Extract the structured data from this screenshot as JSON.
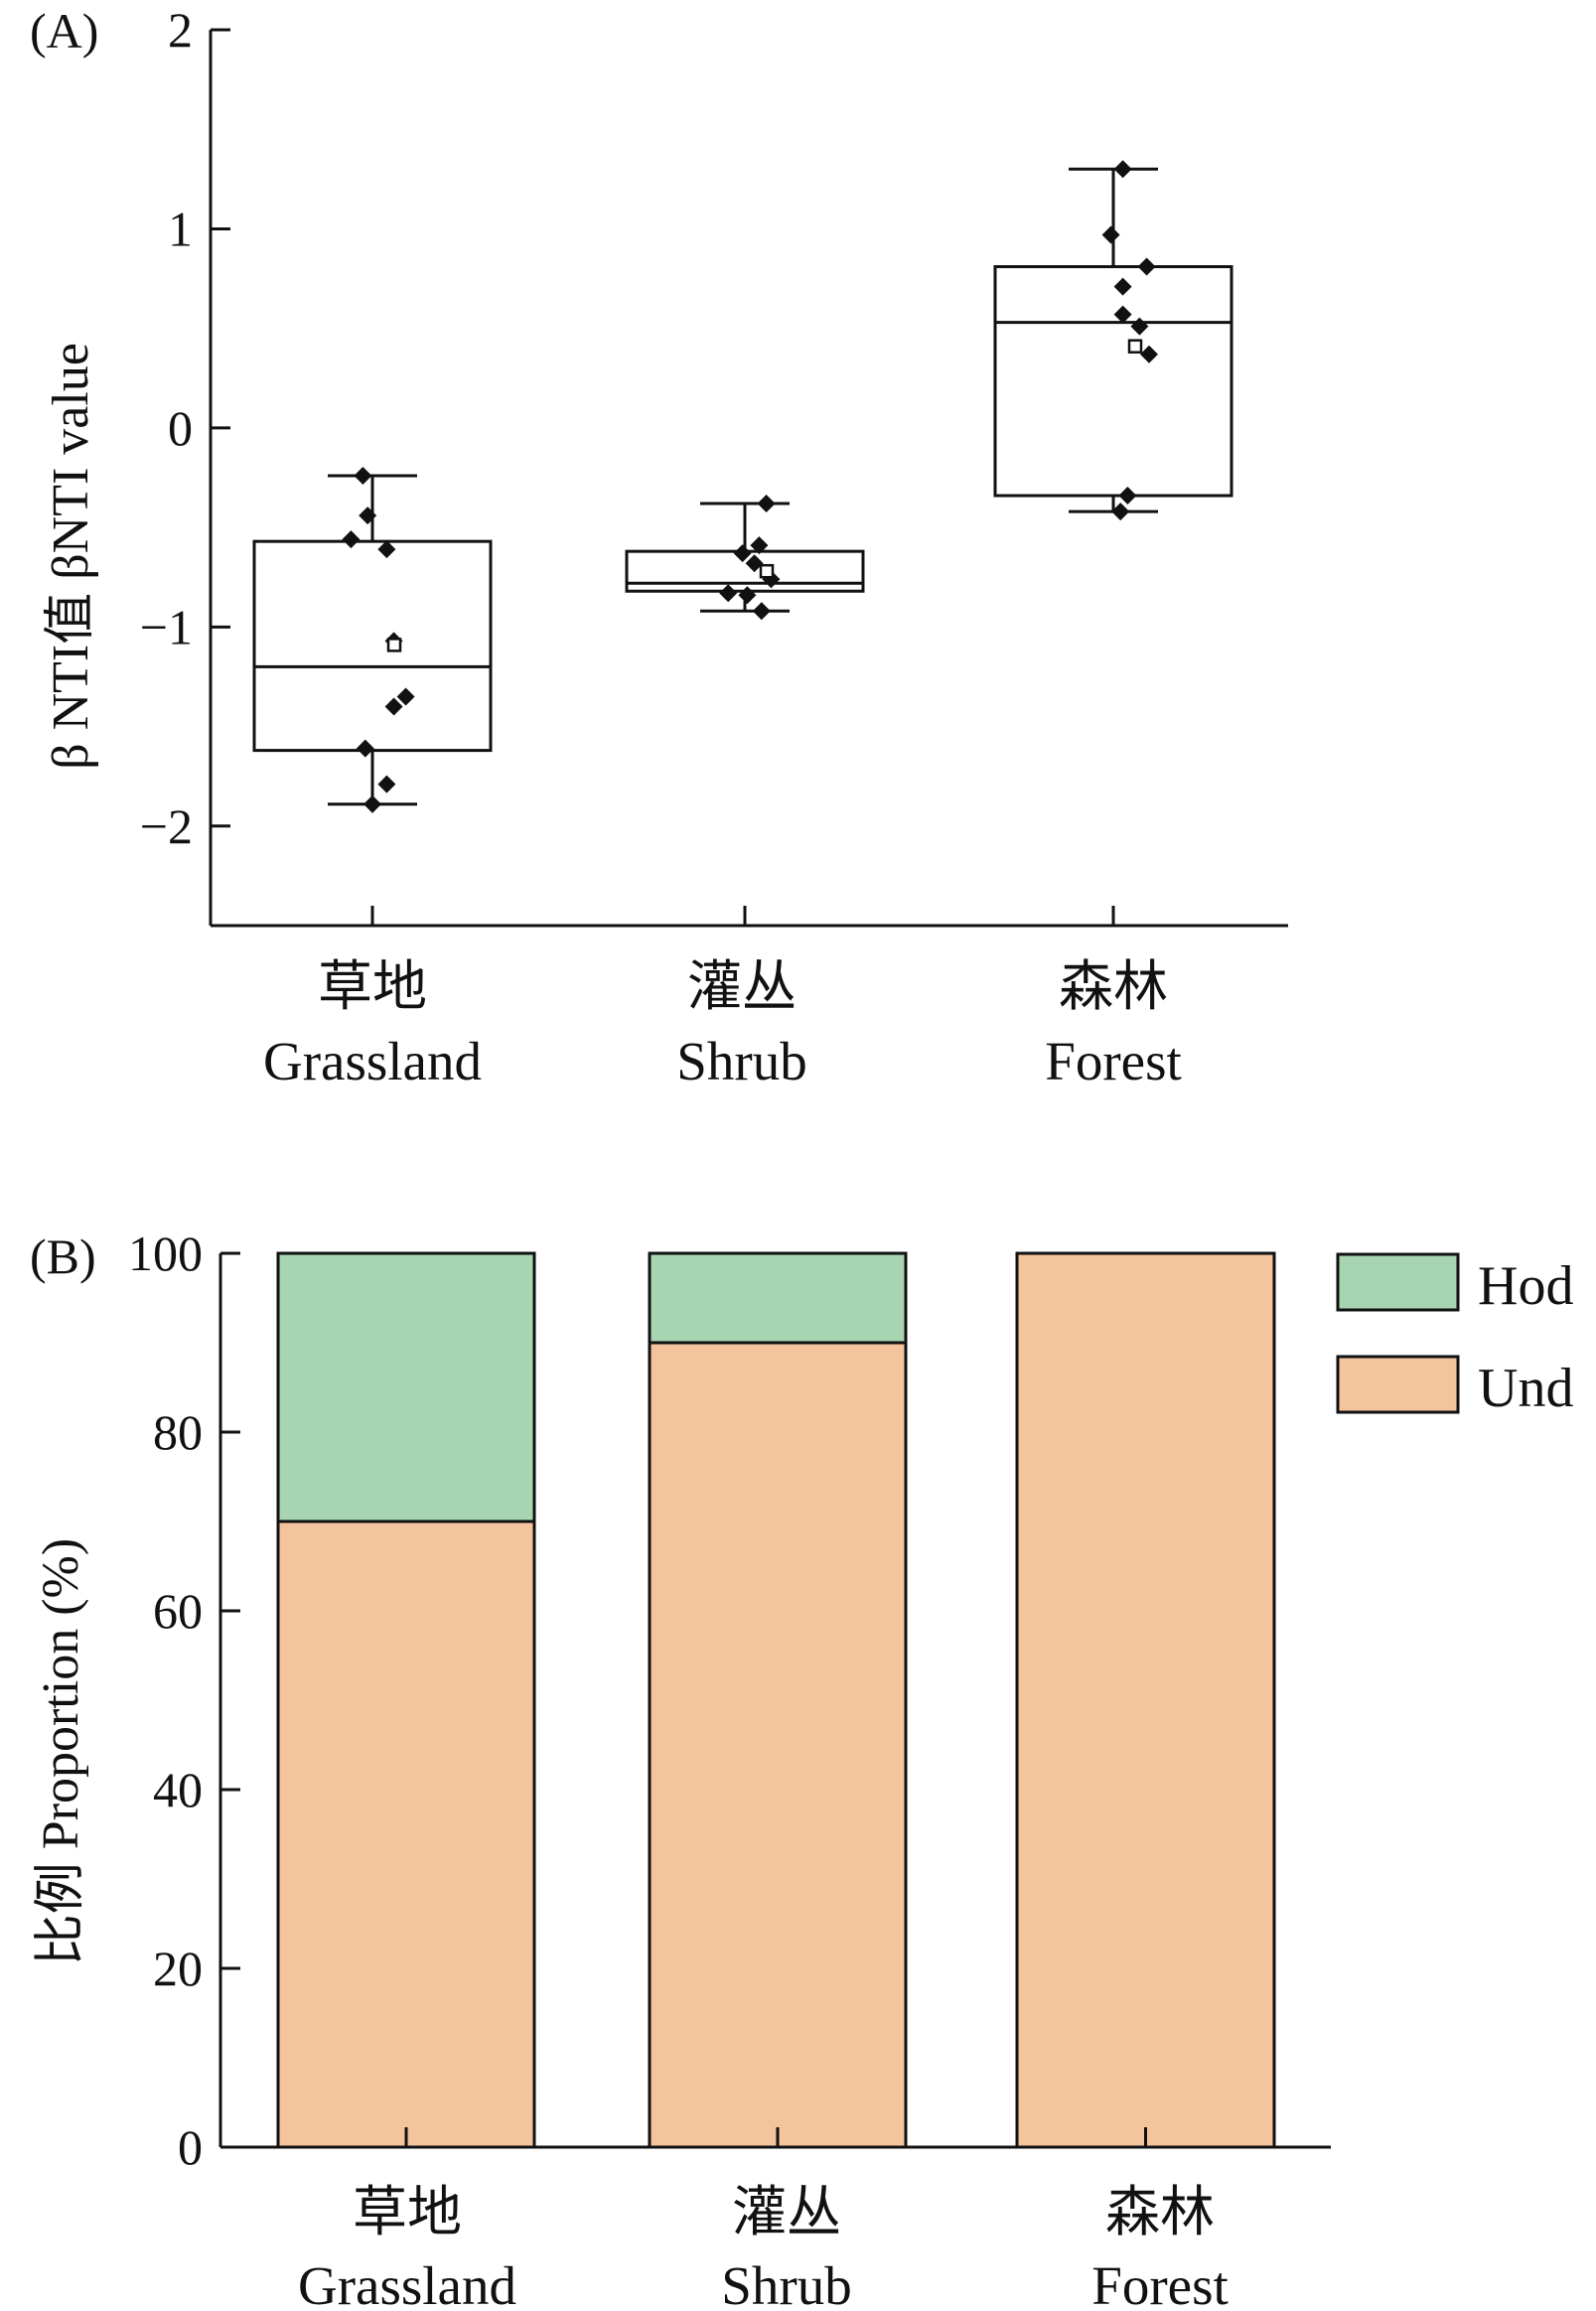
{
  "chart_data": [
    {
      "panel_label": "(A)",
      "type": "box",
      "ylabel": "β NTI值 βNTI value",
      "ylim": [
        -2.5,
        2
      ],
      "yticks": [
        {
          "v": 2,
          "label": "2"
        },
        {
          "v": 1,
          "label": "1"
        },
        {
          "v": 0,
          "label": "0"
        },
        {
          "v": -1,
          "label": "−1"
        },
        {
          "v": -2,
          "label": "−2"
        }
      ],
      "categories": [
        {
          "zh": "草地",
          "en": "Grassland"
        },
        {
          "zh": "灌丛",
          "en": "Shrub"
        },
        {
          "zh": "森林",
          "en": "Forest"
        }
      ],
      "boxes": [
        {
          "whisker_low": -1.89,
          "q1": -1.62,
          "median": -1.2,
          "q3": -0.57,
          "whisker_high": -0.24,
          "mean": -1.09,
          "points": [
            [
              -0.04,
              -0.24
            ],
            [
              -0.02,
              -0.44
            ],
            [
              -0.09,
              -0.56
            ],
            [
              0.06,
              -0.61
            ],
            [
              0.09,
              -1.07
            ],
            [
              0.14,
              -1.35
            ],
            [
              0.09,
              -1.4
            ],
            [
              -0.03,
              -1.61
            ],
            [
              0.06,
              -1.79
            ],
            [
              0.0,
              -1.89
            ]
          ]
        },
        {
          "whisker_low": -0.92,
          "q1": -0.82,
          "median": -0.78,
          "q3": -0.62,
          "whisker_high": -0.38,
          "mean": -0.72,
          "points": [
            [
              0.09,
              -0.38
            ],
            [
              0.06,
              -0.59
            ],
            [
              -0.01,
              -0.63
            ],
            [
              0.04,
              -0.68
            ],
            [
              0.11,
              -0.76
            ],
            [
              -0.07,
              -0.83
            ],
            [
              0.01,
              -0.84
            ],
            [
              0.07,
              -0.92
            ]
          ]
        },
        {
          "whisker_low": -0.42,
          "q1": -0.34,
          "median": 0.53,
          "q3": 0.81,
          "whisker_high": 1.3,
          "mean": 0.41,
          "points": [
            [
              0.04,
              1.3
            ],
            [
              -0.01,
              0.97
            ],
            [
              0.14,
              0.81
            ],
            [
              0.04,
              0.71
            ],
            [
              0.04,
              0.57
            ],
            [
              0.11,
              0.51
            ],
            [
              0.15,
              0.37
            ],
            [
              0.06,
              -0.34
            ],
            [
              0.03,
              -0.42
            ]
          ]
        }
      ]
    },
    {
      "panel_label": "(B)",
      "type": "stacked-bar",
      "ylabel": "比例 Proportion (%)",
      "ylim": [
        0,
        100
      ],
      "yticks": [
        "0",
        "20",
        "40",
        "60",
        "80",
        "100"
      ],
      "categories": [
        {
          "zh": "草地",
          "en": "Grassland"
        },
        {
          "zh": "灌丛",
          "en": "Shrub"
        },
        {
          "zh": "森林",
          "en": "Forest"
        }
      ],
      "series": [
        {
          "name": "Und",
          "values": [
            70,
            90,
            100
          ],
          "color": "#f4c49d"
        },
        {
          "name": "Hod",
          "values": [
            30,
            10,
            0
          ],
          "color": "#a8d5b1"
        }
      ],
      "legend": [
        {
          "name": "Hod",
          "color": "#a8d5b1"
        },
        {
          "name": "Und",
          "color": "#f4c49d"
        }
      ],
      "legend_position": "top-right"
    }
  ]
}
